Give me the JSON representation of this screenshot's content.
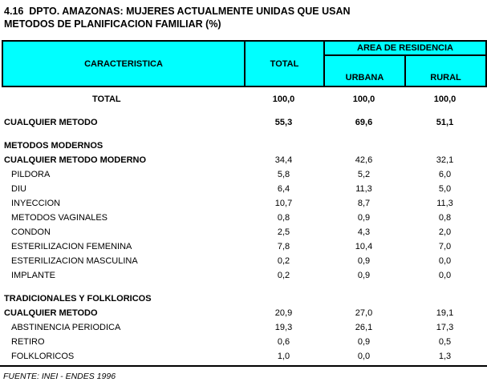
{
  "title": {
    "line1": "4.16  DPTO. AMAZONAS: MUJERES ACTUALMENTE UNIDAS QUE USAN",
    "line2": "METODOS DE PLANIFICACION FAMILIAR (%)"
  },
  "header": {
    "caracteristica": "CARACTERISTICA",
    "total": "TOTAL",
    "area_de_residencia": "AREA DE RESIDENCIA",
    "urbana": "URBANA",
    "rural": "RURAL"
  },
  "footer": {
    "source": "FUENTE: INEI - ENDES 1996"
  },
  "colors": {
    "header_bg": "#00ffff",
    "border": "#000000",
    "text": "#000000",
    "page_bg": "#ffffff"
  },
  "chart_data": {
    "type": "table",
    "title": "4.16 DPTO. AMAZONAS: MUJERES ACTUALMENTE UNIDAS QUE USAN METODOS DE PLANIFICACION FAMILIAR (%)",
    "columns": [
      "CARACTERISTICA",
      "TOTAL",
      "URBANA",
      "RURAL"
    ],
    "unit": "%",
    "rows": [
      {
        "label": "TOTAL",
        "total": "100,0",
        "urbana": "100,0",
        "rural": "100,0",
        "bold": true,
        "value_bold": true,
        "label_offset": true
      },
      {
        "label": "CUALQUIER METODO",
        "total": "55,3",
        "urbana": "69,6",
        "rural": "51,1",
        "bold": true,
        "value_bold": true,
        "gap_before": true
      },
      {
        "label": "METODOS MODERNOS",
        "total": "",
        "urbana": "",
        "rural": "",
        "bold": true,
        "gap_before": true
      },
      {
        "label": "CUALQUIER METODO MODERNO",
        "total": "34,4",
        "urbana": "42,6",
        "rural": "32,1",
        "bold": true
      },
      {
        "label": "PILDORA",
        "total": "5,8",
        "urbana": "5,2",
        "rural": "6,0",
        "indent": true
      },
      {
        "label": "DIU",
        "total": "6,4",
        "urbana": "11,3",
        "rural": "5,0",
        "indent": true
      },
      {
        "label": "INYECCION",
        "total": "10,7",
        "urbana": "8,7",
        "rural": "11,3",
        "indent": true
      },
      {
        "label": "METODOS VAGINALES",
        "total": "0,8",
        "urbana": "0,9",
        "rural": "0,8",
        "indent": true
      },
      {
        "label": "CONDON",
        "total": "2,5",
        "urbana": "4,3",
        "rural": "2,0",
        "indent": true
      },
      {
        "label": "ESTERILIZACION FEMENINA",
        "total": "7,8",
        "urbana": "10,4",
        "rural": "7,0",
        "indent": true
      },
      {
        "label": "ESTERILIZACION MASCULINA",
        "total": "0,2",
        "urbana": "0,9",
        "rural": "0,0",
        "indent": true
      },
      {
        "label": "IMPLANTE",
        "total": "0,2",
        "urbana": "0,9",
        "rural": "0,0",
        "indent": true
      },
      {
        "label": "TRADICIONALES Y FOLKLORICOS",
        "total": "",
        "urbana": "",
        "rural": "",
        "bold": true,
        "gap_before": true
      },
      {
        "label": "CUALQUIER METODO",
        "total": "20,9",
        "urbana": "27,0",
        "rural": "19,1",
        "bold": true
      },
      {
        "label": "ABSTINENCIA PERIODICA",
        "total": "19,3",
        "urbana": "26,1",
        "rural": "17,3",
        "indent": true
      },
      {
        "label": "RETIRO",
        "total": "0,6",
        "urbana": "0,9",
        "rural": "0,5",
        "indent": true
      },
      {
        "label": "FOLKLORICOS",
        "total": "1,0",
        "urbana": "0,0",
        "rural": "1,3",
        "indent": true
      }
    ]
  }
}
